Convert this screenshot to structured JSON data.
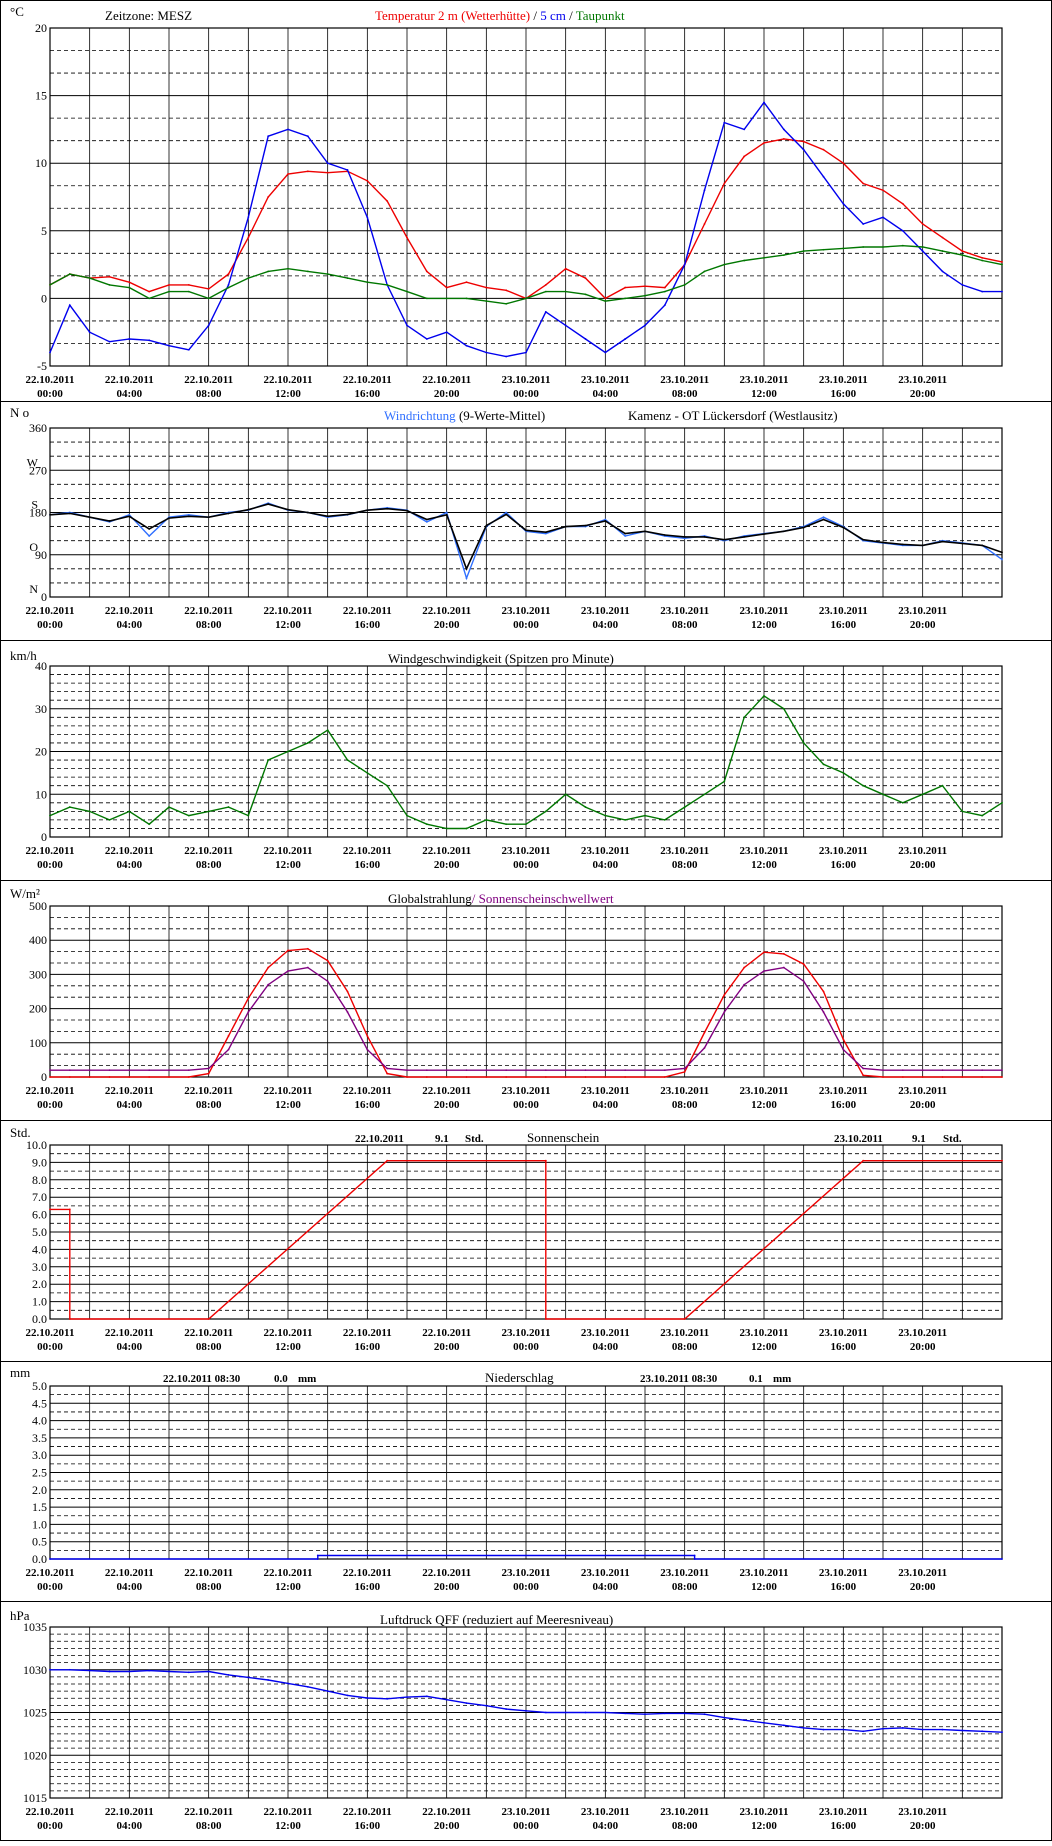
{
  "x_axis": {
    "dates": [
      "22.10.2011",
      "22.10.2011",
      "22.10.2011",
      "22.10.2011",
      "22.10.2011",
      "22.10.2011",
      "23.10.2011",
      "23.10.2011",
      "23.10.2011",
      "23.10.2011",
      "23.10.2011",
      "23.10.2011"
    ],
    "times": [
      "00:00",
      "04:00",
      "08:00",
      "12:00",
      "16:00",
      "20:00",
      "00:00",
      "04:00",
      "08:00",
      "12:00",
      "16:00",
      "20:00"
    ]
  },
  "colors": {
    "red": "#ee0000",
    "blue": "#0000ee",
    "green": "#007700",
    "lightblue": "#2f6fff",
    "purple": "#800080",
    "black": "#000000"
  },
  "chart_data": [
    {
      "id": "temperature",
      "type": "line",
      "unit": "°C",
      "timezone": "Zeitzone: MESZ",
      "title_parts": [
        "Temperatur 2 m (Wetterhütte)",
        " / ",
        "5 cm",
        " / ",
        "Taupunkt"
      ],
      "ylim": [
        -5,
        20
      ],
      "yticks": [
        {
          "v": -5,
          "label": "-5"
        },
        {
          "v": 0,
          "label": "0"
        },
        {
          "v": 5,
          "label": "5"
        },
        {
          "v": 10,
          "label": "10"
        },
        {
          "v": 15,
          "label": "15"
        },
        {
          "v": 20,
          "label": "20"
        }
      ],
      "x_hours": [
        0,
        1,
        2,
        3,
        4,
        5,
        6,
        7,
        8,
        9,
        10,
        11,
        12,
        13,
        14,
        15,
        16,
        17,
        18,
        19,
        20,
        21,
        22,
        23,
        24,
        25,
        26,
        27,
        28,
        29,
        30,
        31,
        32,
        33,
        34,
        35,
        36,
        37,
        38,
        39,
        40,
        41,
        42,
        43,
        44,
        45,
        46,
        47,
        48
      ],
      "series": [
        {
          "name": "Temperatur 2 m (Wetterhütte)",
          "color": "#ee0000",
          "values": [
            1.0,
            1.8,
            1.5,
            1.6,
            1.2,
            0.5,
            1.0,
            1.0,
            0.7,
            1.8,
            4.5,
            7.5,
            9.2,
            9.4,
            9.3,
            9.4,
            8.7,
            7.2,
            4.5,
            2.0,
            0.8,
            1.2,
            0.8,
            0.6,
            0.0,
            1.0,
            2.2,
            1.5,
            0.0,
            0.8,
            0.9,
            0.8,
            2.5,
            5.5,
            8.5,
            10.5,
            11.5,
            11.8,
            11.6,
            11.0,
            10.0,
            8.5,
            8.0,
            7.0,
            5.5,
            4.5,
            3.5,
            3.0,
            2.7
          ]
        },
        {
          "name": "5 cm",
          "color": "#0000ee",
          "values": [
            -4.0,
            -0.5,
            -2.5,
            -3.2,
            -3.0,
            -3.1,
            -3.5,
            -3.8,
            -2.0,
            1.0,
            6.0,
            12.0,
            12.5,
            12.0,
            10.0,
            9.5,
            6.0,
            1.0,
            -2.0,
            -3.0,
            -2.5,
            -3.5,
            -4.0,
            -4.3,
            -4.0,
            -1.0,
            -2.0,
            -3.0,
            -4.0,
            -3.0,
            -2.0,
            -0.5,
            2.5,
            8.0,
            13.0,
            12.5,
            14.5,
            12.5,
            11.0,
            9.0,
            7.0,
            5.5,
            6.0,
            5.0,
            3.5,
            2.0,
            1.0,
            0.5,
            0.5
          ]
        },
        {
          "name": "Taupunkt",
          "color": "#007700",
          "values": [
            1.0,
            1.8,
            1.5,
            1.0,
            0.8,
            0.0,
            0.5,
            0.5,
            0.0,
            0.8,
            1.5,
            2.0,
            2.2,
            2.0,
            1.8,
            1.5,
            1.2,
            1.0,
            0.5,
            0.0,
            0.0,
            0.0,
            -0.2,
            -0.4,
            0.0,
            0.5,
            0.5,
            0.3,
            -0.2,
            0.0,
            0.2,
            0.5,
            1.0,
            2.0,
            2.5,
            2.8,
            3.0,
            3.2,
            3.5,
            3.6,
            3.7,
            3.8,
            3.8,
            3.9,
            3.8,
            3.5,
            3.2,
            2.8,
            2.5
          ]
        }
      ]
    },
    {
      "id": "wind_direction",
      "type": "line",
      "unit": "N o",
      "title_parts": [
        "Windrichtung",
        " (9-Werte-Mittel)"
      ],
      "station": "Kamenz - OT Lückersdorf (Westlausitz)",
      "ylim": [
        0,
        360
      ],
      "yticks": [
        {
          "v": 0,
          "label": "0"
        },
        {
          "v": 90,
          "label": "90"
        },
        {
          "v": 180,
          "label": "180"
        },
        {
          "v": 270,
          "label": "270"
        },
        {
          "v": 360,
          "label": "360"
        }
      ],
      "compass": [
        {
          "v": 0,
          "label": "N"
        },
        {
          "v": 90,
          "label": "O"
        },
        {
          "v": 180,
          "label": "S"
        },
        {
          "v": 270,
          "label": "W"
        }
      ],
      "x_hours": [
        0,
        1,
        2,
        3,
        4,
        5,
        6,
        7,
        8,
        9,
        10,
        11,
        12,
        13,
        14,
        15,
        16,
        17,
        18,
        19,
        20,
        21,
        22,
        23,
        24,
        25,
        26,
        27,
        28,
        29,
        30,
        31,
        32,
        33,
        34,
        35,
        36,
        37,
        38,
        39,
        40,
        41,
        42,
        43,
        44,
        45,
        46,
        47,
        48
      ],
      "series": [
        {
          "name": "Windrichtung",
          "color": "#2f6fff",
          "values": [
            175,
            180,
            170,
            160,
            175,
            130,
            170,
            175,
            170,
            180,
            185,
            200,
            185,
            180,
            170,
            175,
            185,
            190,
            185,
            160,
            180,
            40,
            150,
            180,
            140,
            135,
            150,
            150,
            165,
            130,
            140,
            130,
            125,
            130,
            120,
            130,
            135,
            140,
            150,
            170,
            150,
            120,
            115,
            110,
            110,
            120,
            115,
            110,
            80
          ]
        },
        {
          "name": "9-Werte-Mittel",
          "color": "#000000",
          "values": [
            175,
            178,
            170,
            162,
            172,
            145,
            168,
            172,
            170,
            178,
            186,
            198,
            186,
            180,
            172,
            176,
            185,
            188,
            184,
            165,
            175,
            60,
            152,
            176,
            142,
            138,
            150,
            152,
            162,
            135,
            140,
            132,
            128,
            128,
            122,
            128,
            134,
            140,
            148,
            165,
            148,
            122,
            116,
            112,
            110,
            118,
            114,
            110,
            95
          ]
        }
      ]
    },
    {
      "id": "wind_speed",
      "type": "line",
      "unit": "km/h",
      "title_parts": [
        "Windgeschwindigkeit (Spitzen pro Minute)"
      ],
      "ylim": [
        0,
        40
      ],
      "yticks": [
        {
          "v": 0,
          "label": "0"
        },
        {
          "v": 10,
          "label": "10"
        },
        {
          "v": 20,
          "label": "20"
        },
        {
          "v": 30,
          "label": "30"
        },
        {
          "v": 40,
          "label": "40"
        }
      ],
      "x_hours": [
        0,
        1,
        2,
        3,
        4,
        5,
        6,
        7,
        8,
        9,
        10,
        11,
        12,
        13,
        14,
        15,
        16,
        17,
        18,
        19,
        20,
        21,
        22,
        23,
        24,
        25,
        26,
        27,
        28,
        29,
        30,
        31,
        32,
        33,
        34,
        35,
        36,
        37,
        38,
        39,
        40,
        41,
        42,
        43,
        44,
        45,
        46,
        47,
        48
      ],
      "series": [
        {
          "name": "Windgeschwindigkeit",
          "color": "#007700",
          "values": [
            5,
            7,
            6,
            4,
            6,
            3,
            7,
            5,
            6,
            7,
            5,
            18,
            20,
            22,
            25,
            18,
            15,
            12,
            5,
            3,
            2,
            2,
            4,
            3,
            3,
            6,
            10,
            7,
            5,
            4,
            5,
            4,
            7,
            10,
            13,
            28,
            33,
            30,
            22,
            17,
            15,
            12,
            10,
            8,
            10,
            12,
            6,
            5,
            8
          ]
        }
      ]
    },
    {
      "id": "radiation",
      "type": "line",
      "unit": "W/m²",
      "title_parts": [
        "Globalstrahlung",
        "/ Sonnenscheinschwellwert"
      ],
      "ylim": [
        0,
        500
      ],
      "yticks": [
        {
          "v": 0,
          "label": "0"
        },
        {
          "v": 100,
          "label": "100"
        },
        {
          "v": 200,
          "label": "200"
        },
        {
          "v": 300,
          "label": "300"
        },
        {
          "v": 400,
          "label": "400"
        },
        {
          "v": 500,
          "label": "500"
        }
      ],
      "x_hours": [
        0,
        1,
        2,
        3,
        4,
        5,
        6,
        7,
        8,
        9,
        10,
        11,
        12,
        13,
        14,
        15,
        16,
        17,
        18,
        19,
        20,
        21,
        22,
        23,
        24,
        25,
        26,
        27,
        28,
        29,
        30,
        31,
        32,
        33,
        34,
        35,
        36,
        37,
        38,
        39,
        40,
        41,
        42,
        43,
        44,
        45,
        46,
        47,
        48
      ],
      "series": [
        {
          "name": "Globalstrahlung",
          "color": "#ee0000",
          "values": [
            0,
            0,
            0,
            0,
            0,
            0,
            0,
            0,
            10,
            120,
            230,
            320,
            370,
            375,
            340,
            250,
            120,
            10,
            0,
            0,
            0,
            0,
            0,
            0,
            0,
            0,
            0,
            0,
            0,
            0,
            0,
            0,
            15,
            130,
            240,
            320,
            365,
            360,
            330,
            250,
            110,
            5,
            0,
            0,
            0,
            0,
            0,
            0,
            0
          ]
        },
        {
          "name": "Sonnenscheinschwellwert",
          "color": "#800080",
          "values": [
            20,
            20,
            20,
            20,
            20,
            20,
            20,
            20,
            25,
            80,
            190,
            270,
            310,
            320,
            280,
            190,
            80,
            25,
            20,
            20,
            20,
            20,
            20,
            20,
            20,
            20,
            20,
            20,
            20,
            20,
            20,
            20,
            25,
            85,
            190,
            270,
            310,
            320,
            280,
            190,
            80,
            25,
            20,
            20,
            20,
            20,
            20,
            20,
            20
          ]
        }
      ]
    },
    {
      "id": "sunshine",
      "type": "line",
      "unit": "Std.",
      "title_parts": [
        "Sonnenschein"
      ],
      "annotations": [
        {
          "date": "22.10.2011",
          "value": "9.1",
          "unit": "Std."
        },
        {
          "date": "23.10.2011",
          "value": "9.1",
          "unit": "Std."
        }
      ],
      "ylim": [
        0,
        10
      ],
      "yticks": [
        {
          "v": 0,
          "label": "0.0"
        },
        {
          "v": 1,
          "label": "1.0"
        },
        {
          "v": 2,
          "label": "2.0"
        },
        {
          "v": 3,
          "label": "3.0"
        },
        {
          "v": 4,
          "label": "4.0"
        },
        {
          "v": 5,
          "label": "5.0"
        },
        {
          "v": 6,
          "label": "6.0"
        },
        {
          "v": 7,
          "label": "7.0"
        },
        {
          "v": 8,
          "label": "8.0"
        },
        {
          "v": 9,
          "label": "9.0"
        },
        {
          "v": 10,
          "label": "10.0"
        }
      ],
      "x_hours": [
        0,
        1,
        1,
        8,
        17,
        25,
        25,
        32,
        41,
        48
      ],
      "series": [
        {
          "name": "Sonnenschein",
          "color": "#ee0000",
          "values": [
            6.3,
            6.3,
            0,
            0,
            9.1,
            9.1,
            0,
            0,
            9.1,
            9.1
          ]
        }
      ]
    },
    {
      "id": "precipitation",
      "type": "line",
      "unit": "mm",
      "title_parts": [
        "Niederschlag"
      ],
      "annotations": [
        {
          "date": "22.10.2011 08:30",
          "value": "0.0",
          "unit": "mm"
        },
        {
          "date": "23.10.2011 08:30",
          "value": "0.1",
          "unit": "mm"
        }
      ],
      "ylim": [
        0,
        5
      ],
      "yticks": [
        {
          "v": 0,
          "label": "0.0"
        },
        {
          "v": 0.5,
          "label": "0.5"
        },
        {
          "v": 1,
          "label": "1.0"
        },
        {
          "v": 1.5,
          "label": "1.5"
        },
        {
          "v": 2,
          "label": "2.0"
        },
        {
          "v": 2.5,
          "label": "2.5"
        },
        {
          "v": 3,
          "label": "3.0"
        },
        {
          "v": 3.5,
          "label": "3.5"
        },
        {
          "v": 4,
          "label": "4.0"
        },
        {
          "v": 4.5,
          "label": "4.5"
        },
        {
          "v": 5,
          "label": "5.0"
        }
      ],
      "x_hours": [
        0,
        13.5,
        13.5,
        32.5,
        32.5,
        48
      ],
      "series": [
        {
          "name": "Niederschlag",
          "color": "#0000ee",
          "values": [
            0.0,
            0.0,
            0.1,
            0.1,
            0.0,
            0.0
          ]
        }
      ]
    },
    {
      "id": "pressure",
      "type": "line",
      "unit": "hPa",
      "title_parts": [
        "Luftdruck QFF (reduziert auf Meeresniveau)"
      ],
      "ylim": [
        1015,
        1035
      ],
      "yticks": [
        {
          "v": 1015,
          "label": "1015"
        },
        {
          "v": 1020,
          "label": "1020"
        },
        {
          "v": 1025,
          "label": "1025"
        },
        {
          "v": 1030,
          "label": "1030"
        },
        {
          "v": 1035,
          "label": "1035"
        }
      ],
      "x_hours": [
        0,
        1,
        2,
        3,
        4,
        5,
        6,
        7,
        8,
        9,
        10,
        11,
        12,
        13,
        14,
        15,
        16,
        17,
        18,
        19,
        20,
        21,
        22,
        23,
        24,
        25,
        26,
        27,
        28,
        29,
        30,
        31,
        32,
        33,
        34,
        35,
        36,
        37,
        38,
        39,
        40,
        41,
        42,
        43,
        44,
        45,
        46,
        47,
        48
      ],
      "series": [
        {
          "name": "Luftdruck QFF",
          "color": "#0000ee",
          "values": [
            1030.0,
            1030.0,
            1029.9,
            1029.8,
            1029.8,
            1029.9,
            1029.8,
            1029.7,
            1029.8,
            1029.4,
            1029.1,
            1028.8,
            1028.4,
            1028.0,
            1027.5,
            1027.0,
            1026.7,
            1026.6,
            1026.8,
            1026.9,
            1026.5,
            1026.1,
            1025.8,
            1025.4,
            1025.2,
            1025.0,
            1025.0,
            1025.0,
            1025.0,
            1024.9,
            1024.8,
            1024.9,
            1024.9,
            1024.8,
            1024.4,
            1024.1,
            1023.8,
            1023.5,
            1023.2,
            1023.0,
            1023.0,
            1022.8,
            1023.1,
            1023.2,
            1023.0,
            1023.0,
            1022.9,
            1022.8,
            1022.7
          ]
        }
      ]
    }
  ]
}
